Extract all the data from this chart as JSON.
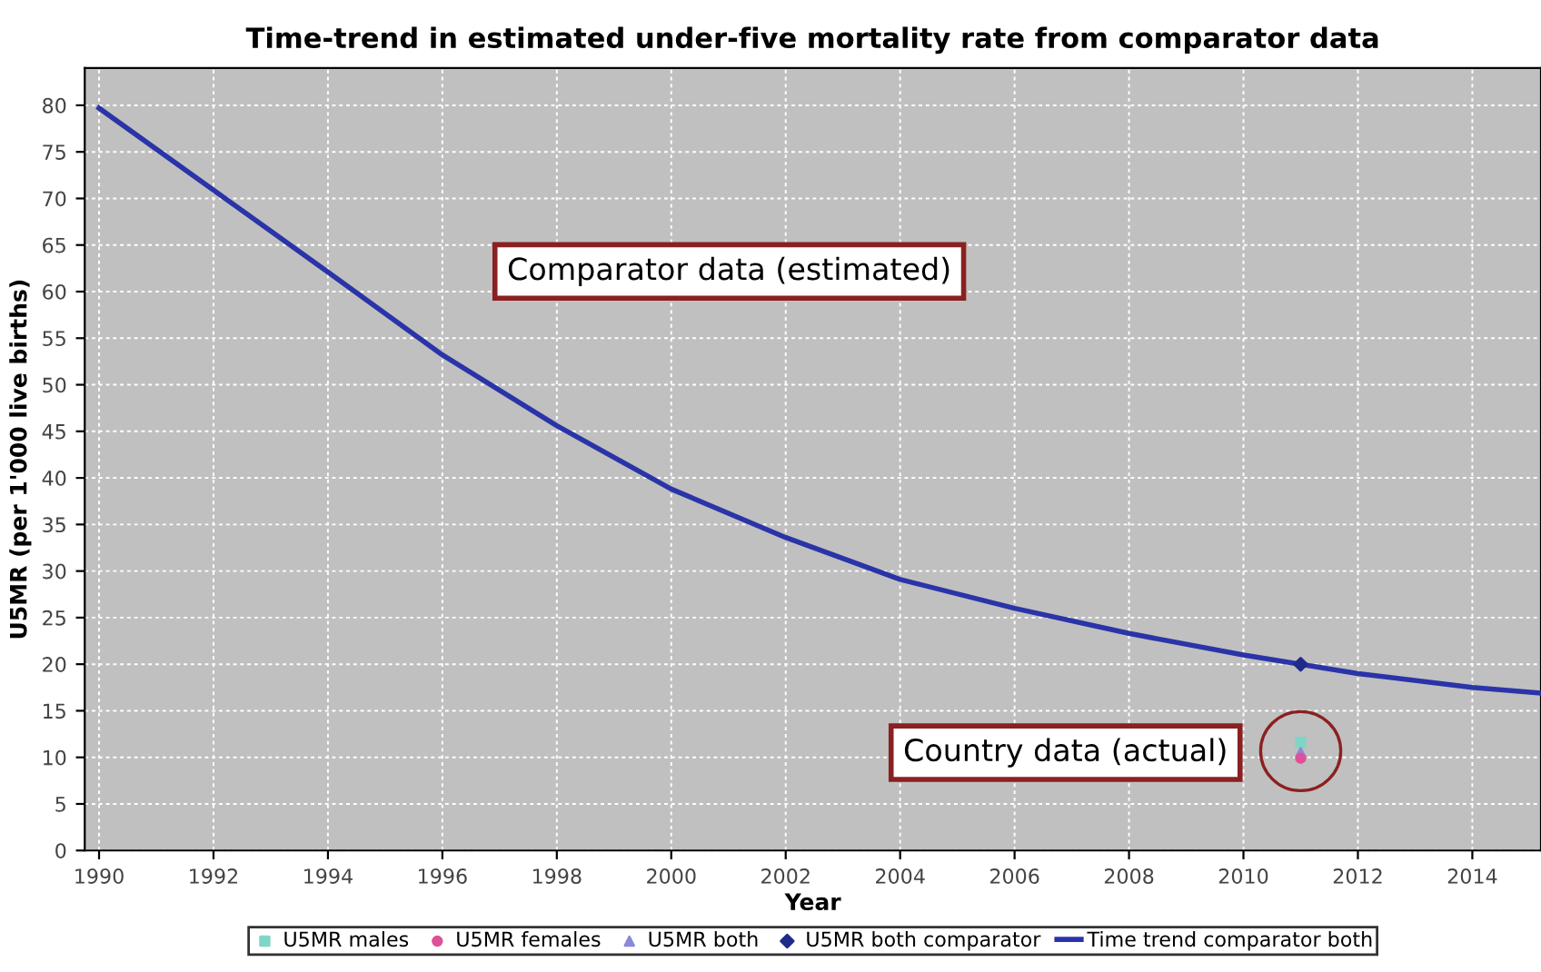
{
  "chart_data": {
    "type": "line",
    "title": "Time-trend in estimated under-five mortality rate from comparator data",
    "xlabel": "Year",
    "ylabel": "U5MR (per 1'000 live births)",
    "xlim": [
      1989.75,
      2015.2
    ],
    "xticks": [
      1990,
      1992,
      1994,
      1996,
      1998,
      2000,
      2002,
      2004,
      2006,
      2008,
      2010,
      2012,
      2014
    ],
    "ylim": [
      0,
      84
    ],
    "yticks": [
      0,
      5,
      10,
      15,
      20,
      25,
      30,
      35,
      40,
      45,
      50,
      55,
      60,
      65,
      70,
      75,
      80
    ],
    "grid": true,
    "legend": "bottom",
    "annotations": [
      "Comparator data (estimated)",
      "Country data (actual)"
    ],
    "series": [
      {
        "name": "U5MR males",
        "type": "scatter",
        "marker": "square",
        "color": "#7fd6c4",
        "x": [
          2011
        ],
        "values": [
          11.6
        ]
      },
      {
        "name": "U5MR females",
        "type": "scatter",
        "marker": "circle",
        "color": "#e0509a",
        "x": [
          2011
        ],
        "values": [
          9.9
        ]
      },
      {
        "name": "U5MR both",
        "type": "scatter",
        "marker": "triangle",
        "color": "#8a8ad8",
        "x": [
          2011
        ],
        "values": [
          10.5
        ]
      },
      {
        "name": "U5MR both comparator",
        "type": "scatter",
        "marker": "diamond",
        "color": "#1f2a8a",
        "x": [
          2011
        ],
        "values": [
          20.0
        ]
      },
      {
        "name": "Time trend comparator both",
        "marker": "none",
        "color": "#2a34a8",
        "x": [
          1990,
          1992,
          1994,
          1996,
          1998,
          2000,
          2002,
          2004,
          2006,
          2008,
          2010,
          2011,
          2012,
          2014,
          2015.2
        ],
        "values": [
          79.7,
          70.9,
          62.1,
          53.2,
          45.6,
          38.8,
          33.6,
          29.1,
          26.0,
          23.3,
          21.0,
          20.0,
          19.0,
          17.5,
          16.9
        ]
      }
    ]
  }
}
